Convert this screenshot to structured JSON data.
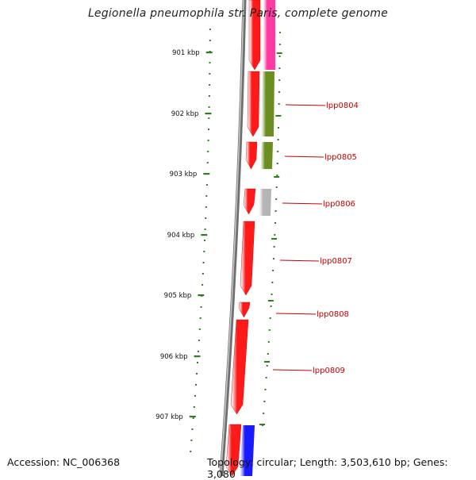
{
  "title": "Legionella pneumophila str. Paris, complete genome",
  "accession": "Accession: NC_006368",
  "topology": "Topology: circular; Length: 3,503,610 bp; Genes: 3,080",
  "colors": {
    "backbone": "#8a8a8a",
    "tick": "#2e7d1f",
    "label_line": "#cc0000",
    "gene_red": "#ff1a1a",
    "gene_pink": "#ff3aa0",
    "gene_olive": "#6b8e23",
    "gene_grey": "#b4b4b4",
    "gene_blue": "#1a1aff"
  },
  "scale_labels": [
    {
      "label": "901 kbp",
      "kbp": 901
    },
    {
      "label": "902 kbp",
      "kbp": 902
    },
    {
      "label": "903 kbp",
      "kbp": 903
    },
    {
      "label": "904 kbp",
      "kbp": 904
    },
    {
      "label": "905 kbp",
      "kbp": 905
    },
    {
      "label": "906 kbp",
      "kbp": 906
    },
    {
      "label": "907 kbp",
      "kbp": 907
    }
  ],
  "gene_labels": [
    {
      "label": "lpp0804"
    },
    {
      "label": "lpp0805"
    },
    {
      "label": "lpp0806"
    },
    {
      "label": "lpp0807"
    },
    {
      "label": "lpp0808"
    },
    {
      "label": "lpp0809"
    }
  ]
}
